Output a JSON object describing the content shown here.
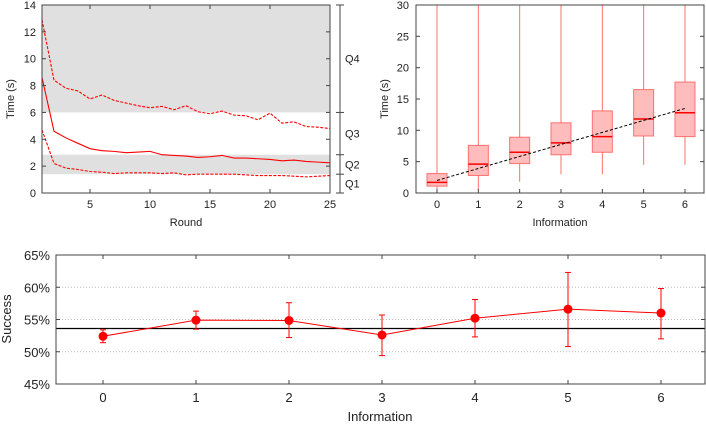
{
  "chart_data": [
    {
      "type": "line",
      "xlabel": "Round",
      "ylabel": "Time (s)",
      "xlim": [
        1,
        25
      ],
      "ylim": [
        0,
        14
      ],
      "xticks": [
        "5",
        "10",
        "15",
        "20",
        "25"
      ],
      "yticks": [
        "0",
        "2",
        "4",
        "6",
        "8",
        "10",
        "12",
        "14"
      ],
      "bands": [
        {
          "label": "Q4",
          "from": 6,
          "to": 14,
          "shaded": true
        },
        {
          "label": "Q3",
          "from": 2.85,
          "to": 6,
          "shaded": false
        },
        {
          "label": "Q2",
          "from": 1.4,
          "to": 2.85,
          "shaded": true
        },
        {
          "label": "Q1",
          "from": 0,
          "to": 1.4,
          "shaded": false
        }
      ],
      "x": [
        1,
        2,
        3,
        4,
        5,
        6,
        7,
        8,
        9,
        10,
        11,
        12,
        13,
        14,
        15,
        16,
        17,
        18,
        19,
        20,
        21,
        22,
        23,
        24,
        25
      ],
      "series": [
        {
          "style": "dashed",
          "values": [
            12.9,
            8.4,
            7.8,
            7.6,
            7.0,
            7.3,
            6.9,
            6.7,
            6.5,
            6.35,
            6.45,
            6.2,
            6.5,
            6.05,
            5.9,
            6.1,
            5.8,
            5.75,
            5.45,
            5.95,
            5.2,
            5.3,
            4.95,
            4.9,
            4.8
          ]
        },
        {
          "style": "solid",
          "values": [
            8.6,
            4.6,
            4.1,
            3.7,
            3.3,
            3.15,
            3.1,
            3.0,
            3.05,
            3.1,
            2.85,
            2.8,
            2.75,
            2.65,
            2.7,
            2.8,
            2.6,
            2.6,
            2.55,
            2.5,
            2.4,
            2.45,
            2.35,
            2.3,
            2.25
          ]
        },
        {
          "style": "dashed",
          "values": [
            4.7,
            2.2,
            1.85,
            1.75,
            1.6,
            1.55,
            1.45,
            1.5,
            1.5,
            1.5,
            1.45,
            1.5,
            1.35,
            1.4,
            1.4,
            1.4,
            1.4,
            1.35,
            1.3,
            1.3,
            1.3,
            1.25,
            1.2,
            1.25,
            1.3
          ]
        }
      ],
      "colors": {
        "line": "#ff0000",
        "band": "#e0e0e0"
      }
    },
    {
      "type": "box",
      "xlabel": "Information",
      "ylabel": "Time (s)",
      "ylim": [
        0,
        30
      ],
      "yticks": [
        "0",
        "5",
        "10",
        "15",
        "20",
        "25",
        "30"
      ],
      "categories": [
        "0",
        "1",
        "2",
        "3",
        "4",
        "5",
        "6"
      ],
      "boxes": [
        {
          "min": 0,
          "q1": 1.1,
          "median": 1.7,
          "q3": 3.1,
          "max": 30
        },
        {
          "min": 0.5,
          "q1": 2.8,
          "median": 4.6,
          "q3": 7.6,
          "max": 30
        },
        {
          "min": 1.8,
          "q1": 4.7,
          "median": 6.5,
          "q3": 8.9,
          "max": 30
        },
        {
          "min": 3.0,
          "q1": 6.1,
          "median": 8.0,
          "q3": 11.2,
          "max": 30
        },
        {
          "min": 3.0,
          "q1": 6.5,
          "median": 9.0,
          "q3": 13.1,
          "max": 30
        },
        {
          "min": 4.5,
          "q1": 9.1,
          "median": 11.8,
          "q3": 16.5,
          "max": 30
        },
        {
          "min": 4.5,
          "q1": 9.0,
          "median": 12.8,
          "q3": 17.7,
          "max": 30
        }
      ],
      "trend": {
        "from": [
          0,
          2.0
        ],
        "to": [
          6,
          13.5
        ],
        "style": "dashed"
      },
      "colors": {
        "box": "#ffbcbc",
        "edge": "#ff7070",
        "median": "#ff0000",
        "trend": "#000000"
      }
    },
    {
      "type": "line",
      "xlabel": "Information",
      "ylabel": "Success",
      "ylim": [
        45,
        65
      ],
      "yticks": [
        "45%",
        "50%",
        "55%",
        "60%",
        "65%"
      ],
      "categories": [
        "0",
        "1",
        "2",
        "3",
        "4",
        "5",
        "6"
      ],
      "values": [
        52.4,
        54.9,
        54.85,
        52.6,
        55.2,
        56.6,
        56.0
      ],
      "error_low": [
        51.4,
        53.5,
        52.2,
        49.4,
        52.3,
        50.8,
        52.0
      ],
      "error_high": [
        53.4,
        56.3,
        57.6,
        55.7,
        58.1,
        62.3,
        59.8
      ],
      "reference_line": 53.6,
      "grid": "dotted at 50%, 55%, 60%",
      "colors": {
        "line": "#ff0000",
        "reference": "#000000"
      }
    }
  ]
}
